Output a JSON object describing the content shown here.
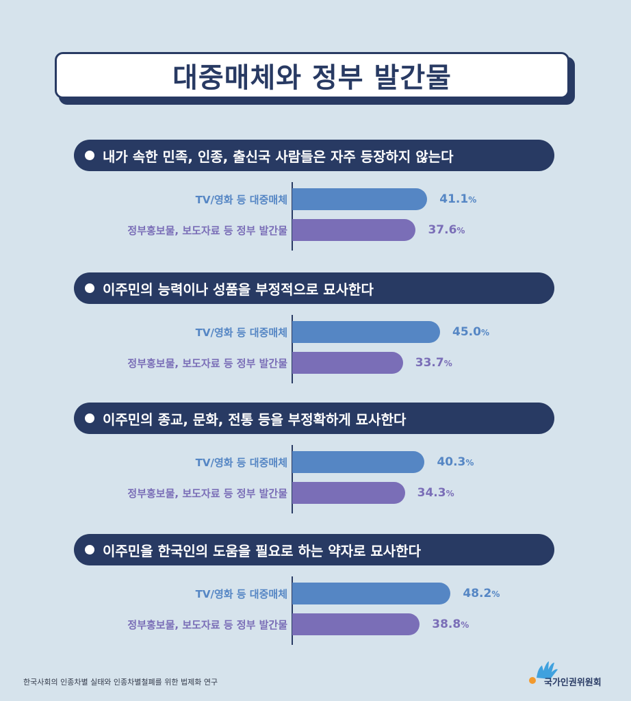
{
  "title": "대중매체와 정부 발간물",
  "colors": {
    "tv": "#5586c4",
    "gov": "#7a6eb7",
    "dark": "#283a63",
    "background": "#d6e3ec"
  },
  "chart_data": [
    {
      "type": "bar",
      "title": "내가 속한 민족, 인종, 출신국 사람들은 자주 등장하지 않는다",
      "categories": [
        "TV/영화 등 대중매체",
        "정부홍보물, 보도자료 등 정부 발간물"
      ],
      "values": [
        41.1,
        37.6
      ],
      "value_labels": [
        "41.1",
        "37.6"
      ],
      "unit": "%"
    },
    {
      "type": "bar",
      "title": "이주민의 능력이나 성품을 부정적으로 묘사한다",
      "categories": [
        "TV/영화 등 대중매체",
        "정부홍보물, 보도자료 등 정부 발간물"
      ],
      "values": [
        45.0,
        33.7
      ],
      "value_labels": [
        "45.0",
        "33.7"
      ],
      "unit": "%"
    },
    {
      "type": "bar",
      "title": "이주민의 종교, 문화, 전통 등을 부정확하게 묘사한다",
      "categories": [
        "TV/영화 등 대중매체",
        "정부홍보물, 보도자료 등 정부 발간물"
      ],
      "values": [
        40.3,
        34.3
      ],
      "value_labels": [
        "40.3",
        "34.3"
      ],
      "unit": "%"
    },
    {
      "type": "bar",
      "title": "이주민을 한국인의 도움을 필요로 하는 약자로 묘사한다",
      "categories": [
        "TV/영화 등 대중매체",
        "정부홍보물, 보도자료 등 정부 발간물"
      ],
      "values": [
        48.2,
        38.8
      ],
      "value_labels": [
        "48.2",
        "38.8"
      ],
      "unit": "%"
    }
  ],
  "footer": {
    "source": "한국사회의 인종차별 실태와 인종차별철폐를 위한 법제화 연구",
    "org": "국가인권위원회"
  }
}
